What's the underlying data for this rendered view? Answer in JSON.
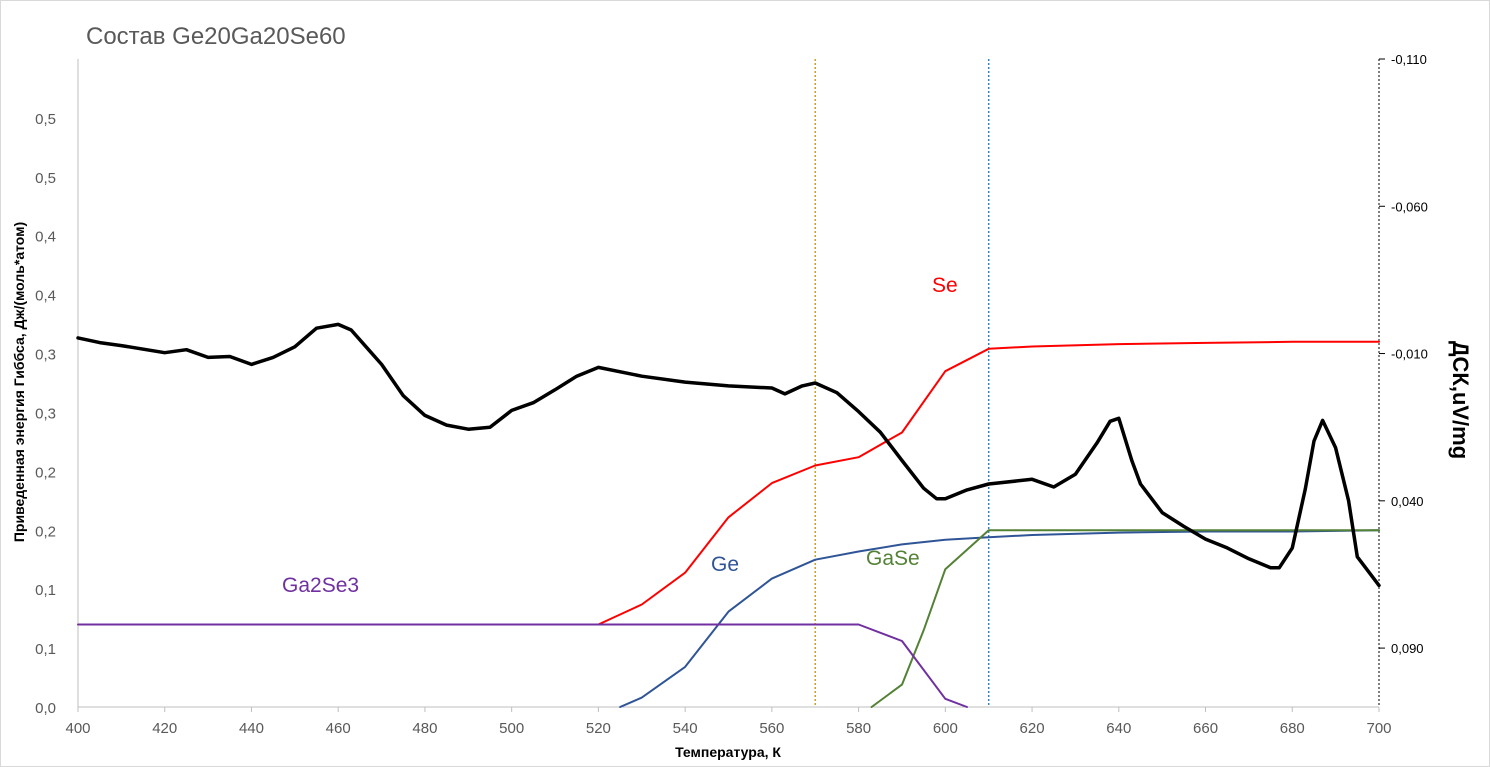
{
  "chart_data": {
    "type": "line",
    "title": "Состав Ge20Ga20Se60",
    "xlabel": "Температура, К",
    "ylabel": "Приведенная энергия Гиббса, Дж/(моль*атом)",
    "y2label": "ДСК,uV/mg",
    "xlim": [
      400,
      700
    ],
    "ylim": [
      0,
      0.55
    ],
    "y2lim": [
      0.11,
      -0.11
    ],
    "y2_inverted": true,
    "grid": false,
    "x_ticks": [
      "400",
      "420",
      "440",
      "460",
      "480",
      "500",
      "520",
      "540",
      "560",
      "580",
      "600",
      "620",
      "640",
      "660",
      "680",
      "700"
    ],
    "y_ticks": [
      {
        "v": 0.0,
        "label": "0,0"
      },
      {
        "v": 0.05,
        "label": "0,1"
      },
      {
        "v": 0.1,
        "label": "0,1"
      },
      {
        "v": 0.15,
        "label": "0,2"
      },
      {
        "v": 0.2,
        "label": "0,2"
      },
      {
        "v": 0.25,
        "label": "0,3"
      },
      {
        "v": 0.3,
        "label": "0,3"
      },
      {
        "v": 0.35,
        "label": "0,4"
      },
      {
        "v": 0.4,
        "label": "0,4"
      },
      {
        "v": 0.45,
        "label": "0,5"
      },
      {
        "v": 0.5,
        "label": "0,5"
      }
    ],
    "y2_ticks": [
      {
        "v": -0.11,
        "label": "-0,110"
      },
      {
        "v": -0.06,
        "label": "-0,060"
      },
      {
        "v": -0.01,
        "label": "-0,010"
      },
      {
        "v": 0.04,
        "label": "0,040"
      },
      {
        "v": 0.09,
        "label": "0,090"
      }
    ],
    "vlines": [
      {
        "x": 570,
        "color": "#C9A227"
      },
      {
        "x": 610,
        "color": "#2E86C1"
      }
    ],
    "series": [
      {
        "name": "Se",
        "color": "#FF0000",
        "axis": "left",
        "label_at": [
          932,
          292
        ],
        "x": [
          520,
          530,
          540,
          550,
          560,
          570,
          580,
          590,
          600,
          610,
          620,
          640,
          660,
          680,
          700
        ],
        "y": [
          0.07,
          0.087,
          0.114,
          0.161,
          0.19,
          0.205,
          0.212,
          0.233,
          0.285,
          0.304,
          0.306,
          0.308,
          0.309,
          0.31,
          0.31
        ]
      },
      {
        "name": "Ge",
        "color": "#2F5597",
        "axis": "left",
        "label_at": [
          711,
          571
        ],
        "x": [
          525,
          530,
          540,
          550,
          560,
          570,
          580,
          590,
          600,
          610,
          620,
          640,
          660,
          680,
          700
        ],
        "y": [
          0.0,
          0.008,
          0.034,
          0.081,
          0.109,
          0.125,
          0.132,
          0.138,
          0.142,
          0.144,
          0.146,
          0.148,
          0.149,
          0.149,
          0.15
        ]
      },
      {
        "name": "GaSe",
        "color": "#538135",
        "axis": "left",
        "label_at": [
          866,
          565
        ],
        "x": [
          583,
          590,
          595,
          600,
          610,
          620,
          640,
          660,
          680,
          700
        ],
        "y": [
          0.0,
          0.019,
          0.065,
          0.117,
          0.15,
          0.15,
          0.15,
          0.15,
          0.15,
          0.15
        ]
      },
      {
        "name": "Ga2Se3",
        "color": "#7030A0",
        "axis": "left",
        "label_at": [
          282,
          592
        ],
        "x": [
          400,
          450,
          500,
          550,
          570,
          580,
          590,
          600,
          605
        ],
        "y": [
          0.07,
          0.07,
          0.07,
          0.07,
          0.07,
          0.07,
          0.056,
          0.007,
          0.0
        ]
      },
      {
        "name": "",
        "color": "#000000",
        "axis": "right",
        "x": [
          400,
          405,
          410,
          420,
          425,
          430,
          435,
          440,
          445,
          450,
          455,
          460,
          463,
          467,
          470,
          475,
          480,
          485,
          490,
          495,
          500,
          505,
          510,
          515,
          520,
          530,
          540,
          550,
          560,
          563,
          567,
          570,
          575,
          580,
          585,
          590,
          595,
          598,
          600,
          605,
          610,
          620,
          625,
          630,
          635,
          638,
          640,
          643,
          645,
          650,
          655,
          660,
          665,
          670,
          675,
          677,
          680,
          683,
          685,
          687,
          690,
          693,
          695,
          700
        ],
        "y": [
          -0.0153,
          -0.0137,
          -0.0127,
          -0.0103,
          -0.0113,
          -0.0087,
          -0.009,
          -0.0063,
          -0.0087,
          -0.0123,
          -0.0186,
          -0.0199,
          -0.018,
          -0.0113,
          -0.0063,
          0.0043,
          0.011,
          0.0143,
          0.0157,
          0.015,
          0.0093,
          0.0067,
          0.0023,
          -0.0023,
          -0.0053,
          -0.0023,
          -0.0003,
          0.001,
          0.0017,
          0.0037,
          0.001,
          0.0,
          0.0033,
          0.0097,
          0.0167,
          0.0263,
          0.0357,
          0.0393,
          0.0393,
          0.0363,
          0.0343,
          0.0327,
          0.0353,
          0.031,
          0.0203,
          0.013,
          0.012,
          0.0263,
          0.0343,
          0.044,
          0.0487,
          0.053,
          0.056,
          0.0597,
          0.0627,
          0.0627,
          0.056,
          0.036,
          0.0197,
          0.0127,
          0.022,
          0.04,
          0.059,
          0.0687
        ]
      }
    ]
  }
}
